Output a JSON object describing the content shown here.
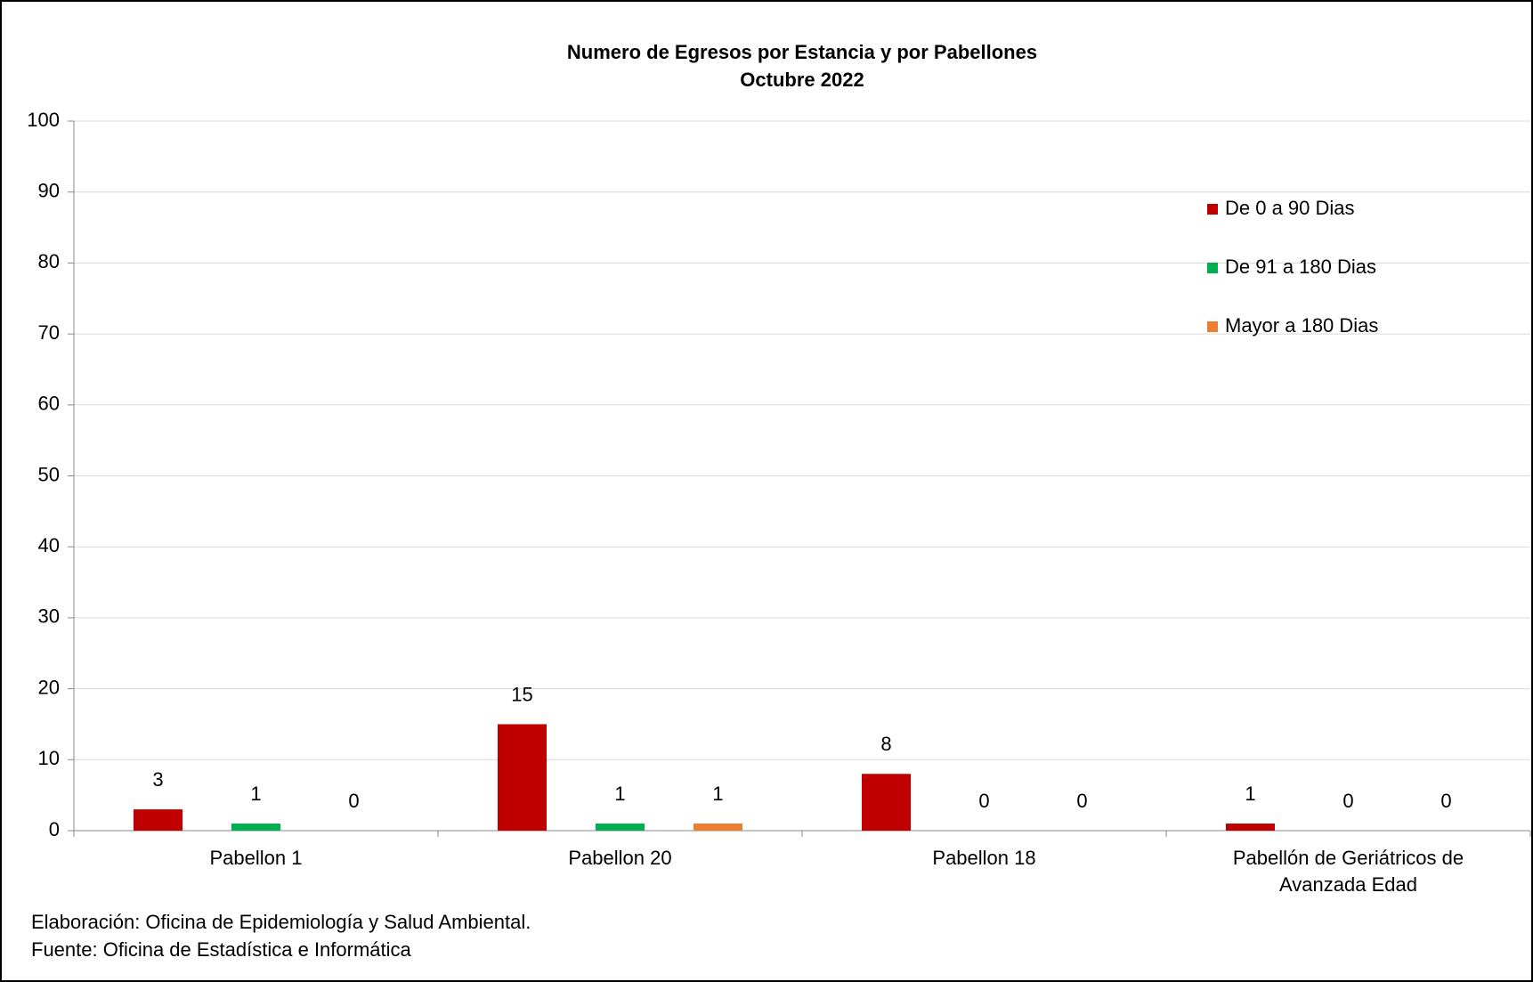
{
  "chart_data": {
    "type": "bar",
    "title": "Numero de Egresos por Estancia y por Pabellones",
    "subtitle": "Octubre 2022",
    "categories": [
      "Pabellon 1",
      "Pabellon 20",
      "Pabellon 18",
      "Pabellón de Geriátricos de Avanzada Edad"
    ],
    "series": [
      {
        "name": "De 0 a 90 Dias",
        "color": "#c00000",
        "values": [
          3,
          15,
          8,
          1
        ]
      },
      {
        "name": "De 91 a 180 Dias",
        "color": "#00b050",
        "values": [
          1,
          1,
          0,
          0
        ]
      },
      {
        "name": "Mayor a 180 Dias",
        "color": "#ed7d31",
        "values": [
          0,
          1,
          0,
          0
        ]
      }
    ],
    "ylim": [
      0,
      100
    ],
    "yticks": [
      0,
      10,
      20,
      30,
      40,
      50,
      60,
      70,
      80,
      90,
      100
    ],
    "grid": true,
    "legend": "right",
    "annotations": [
      "Elaboración: Oficina de Epidemiología y Salud Ambiental.",
      "Fuente:  Oficina de Estadística e Informática"
    ]
  }
}
